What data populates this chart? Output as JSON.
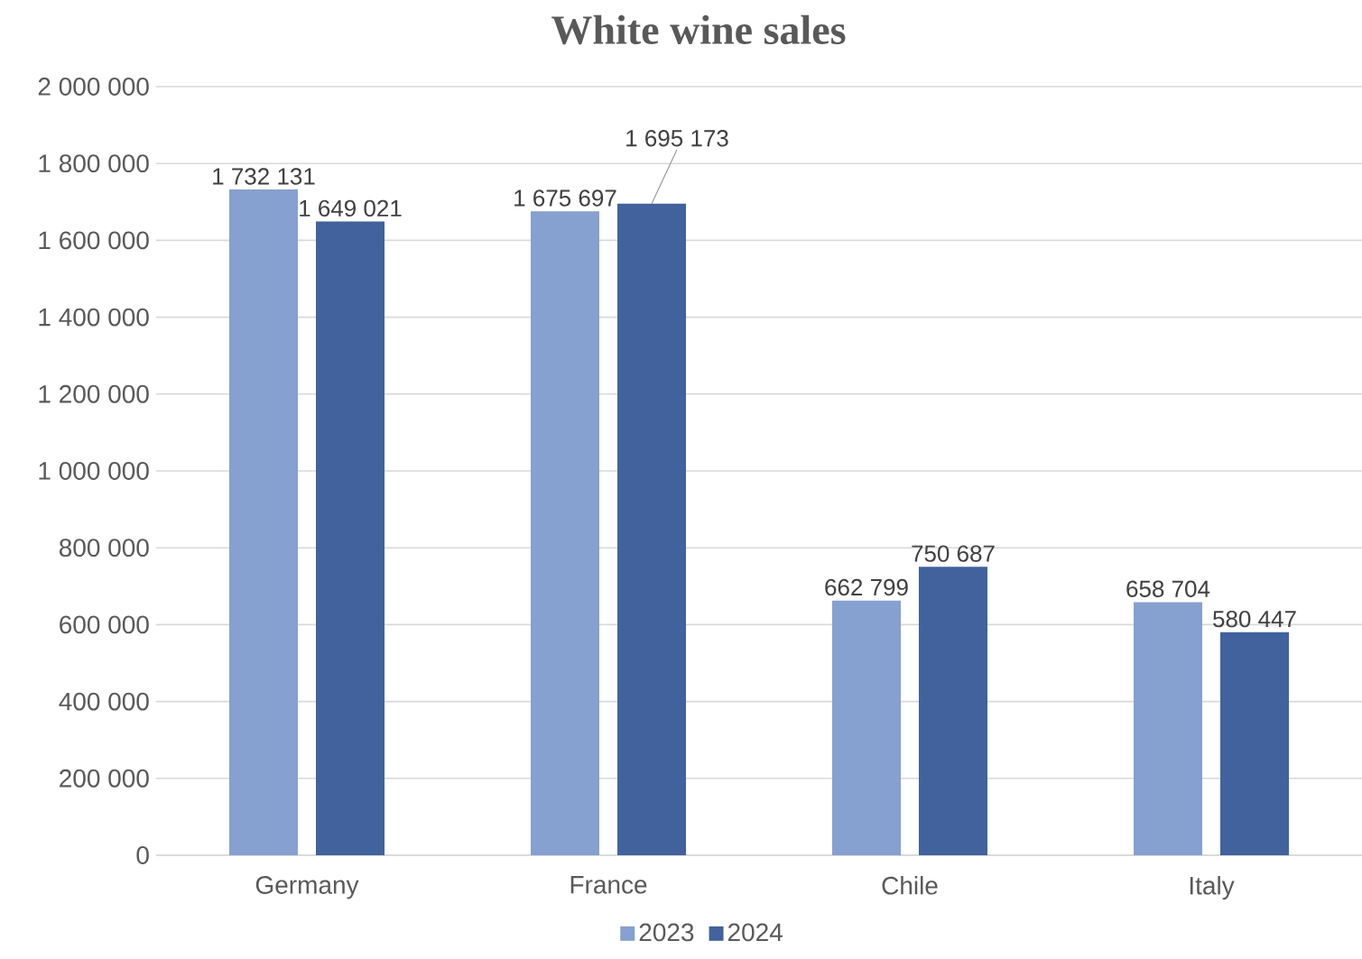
{
  "chart_data": {
    "type": "bar",
    "title": "White wine sales",
    "categories": [
      "Germany",
      "France",
      "Chile",
      "Italy"
    ],
    "series": [
      {
        "name": "2023",
        "color": "#86a0cf",
        "values": [
          1732131,
          1675697,
          662799,
          658704
        ],
        "value_labels": [
          "1 732 131",
          "1 675 697",
          "662 799",
          "658 704"
        ]
      },
      {
        "name": "2024",
        "color": "#41629c",
        "values": [
          1649021,
          1695173,
          750687,
          580447
        ],
        "value_labels": [
          "1 649 021",
          "1 695 173",
          "750 687",
          "580 447"
        ]
      }
    ],
    "ylim": [
      0,
      2000000
    ],
    "yticks": [
      {
        "value": 0,
        "label": "0"
      },
      {
        "value": 200000,
        "label": "200 000"
      },
      {
        "value": 400000,
        "label": "400 000"
      },
      {
        "value": 600000,
        "label": "600 000"
      },
      {
        "value": 800000,
        "label": "800 000"
      },
      {
        "value": 1000000,
        "label": "1 000 000"
      },
      {
        "value": 1200000,
        "label": "1 200 000"
      },
      {
        "value": 1400000,
        "label": "1 400 000"
      },
      {
        "value": 1600000,
        "label": "1 600 000"
      },
      {
        "value": 1800000,
        "label": "1 800 000"
      },
      {
        "value": 2000000,
        "label": "2 000 000"
      }
    ],
    "grid": "y",
    "legend": "bottom"
  }
}
